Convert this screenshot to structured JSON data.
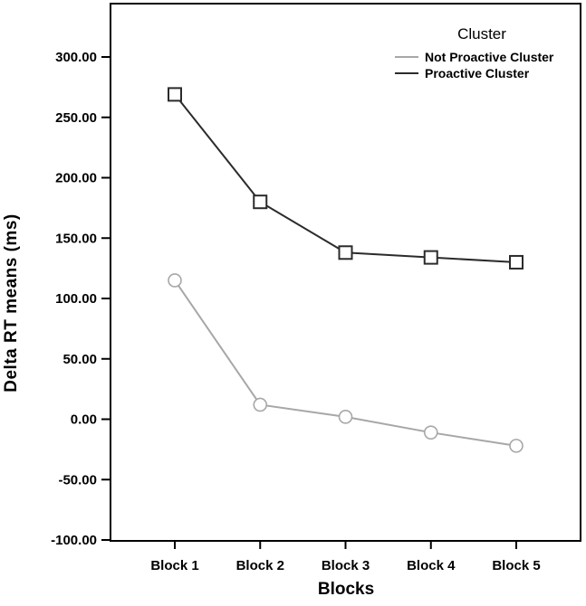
{
  "chart_data": {
    "type": "line",
    "title": "",
    "xlabel": "Blocks",
    "ylabel": "Delta RT means (ms)",
    "categories": [
      "Block 1",
      "Block 2",
      "Block 3",
      "Block 4",
      "Block 5"
    ],
    "series": [
      {
        "name": "Not Proactive Cluster",
        "values": [
          115,
          12,
          2,
          -11,
          -22
        ],
        "color": "#a7a7a7",
        "marker": "circle"
      },
      {
        "name": "Proactive Cluster",
        "values": [
          269,
          180,
          138,
          134,
          130
        ],
        "color": "#2b2b2b",
        "marker": "square"
      }
    ],
    "y_ticks": [
      300,
      250,
      200,
      150,
      100,
      50,
      0,
      -50,
      -100
    ],
    "y_tick_labels": [
      "300.00",
      "250.00",
      "200.00",
      "150.00",
      "100.00",
      "50.00",
      "0.00",
      "-50.00",
      "-100.00"
    ],
    "ylim": [
      -103,
      348
    ],
    "grid": false,
    "legend": {
      "title": "Cluster",
      "position": "top-right-inside"
    },
    "marker_fill": "#ffffff",
    "frame_color": "#000000",
    "text_color": "#000000",
    "background": "#ffffff"
  }
}
